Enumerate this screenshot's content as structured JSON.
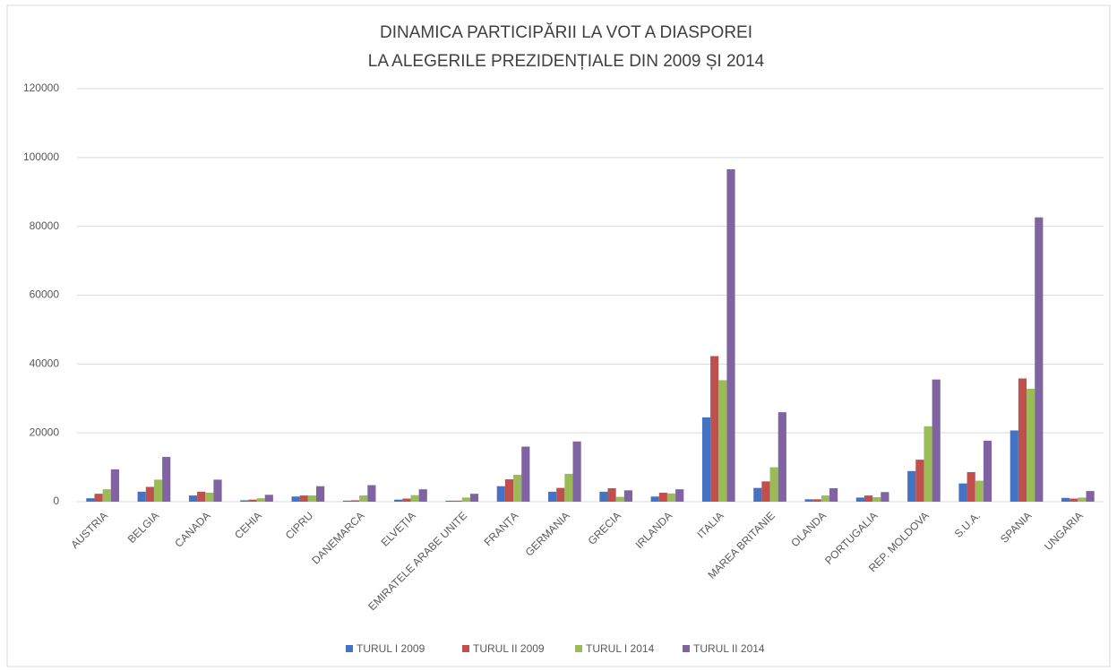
{
  "chart_data": {
    "type": "bar",
    "title": [
      "DINAMICA PARTICIPĂRII LA VOT A DIASPOREI",
      "LA ALEGERILE PREZIDENȚIALE DIN 2009 ȘI 2014"
    ],
    "categories": [
      "AUSTRIA",
      "BELGIA",
      "CANADA",
      "CEHIA",
      "CIPRU",
      "DANEMARCA",
      "ELVEȚIA",
      "EMIRATELE ARABE UNITE",
      "FRANȚA",
      "GERMANIA",
      "GRECIA",
      "IRLANDA",
      "ITALIA",
      "MAREA BRITANIE",
      "OLANDA",
      "PORTUGALIA",
      "REP. MOLDOVA",
      "S.U.A.",
      "SPANIA",
      "UNGARIA"
    ],
    "series": [
      {
        "name": "TURUL I 2009",
        "color": "#4472c4",
        "values": [
          1000,
          2900,
          1800,
          400,
          1500,
          300,
          600,
          300,
          4500,
          2900,
          2900,
          1500,
          24500,
          4000,
          700,
          1200,
          8900,
          5300,
          20700,
          1100
        ]
      },
      {
        "name": "TURUL II 2009",
        "color": "#c0504d",
        "values": [
          2300,
          4300,
          2900,
          600,
          1800,
          400,
          900,
          300,
          6500,
          4000,
          3900,
          2600,
          42300,
          5900,
          700,
          1800,
          12200,
          8600,
          35800,
          900
        ]
      },
      {
        "name": "TURUL I 2014",
        "color": "#9bbb59",
        "values": [
          3600,
          6400,
          2600,
          1000,
          1800,
          1800,
          1900,
          1200,
          7800,
          8100,
          1400,
          2400,
          35300,
          10000,
          1800,
          1300,
          21900,
          6100,
          32800,
          1200
        ]
      },
      {
        "name": "TURUL II 2014",
        "color": "#8064a2",
        "values": [
          9400,
          13000,
          6400,
          2000,
          4500,
          4800,
          3600,
          2300,
          16000,
          17500,
          3300,
          3600,
          96600,
          26000,
          3900,
          2800,
          35500,
          17700,
          82600,
          3100
        ]
      }
    ],
    "ylim": [
      0,
      120000
    ],
    "yticks": [
      0,
      20000,
      40000,
      60000,
      80000,
      100000,
      120000
    ],
    "grid": true,
    "legend": "bottom"
  }
}
